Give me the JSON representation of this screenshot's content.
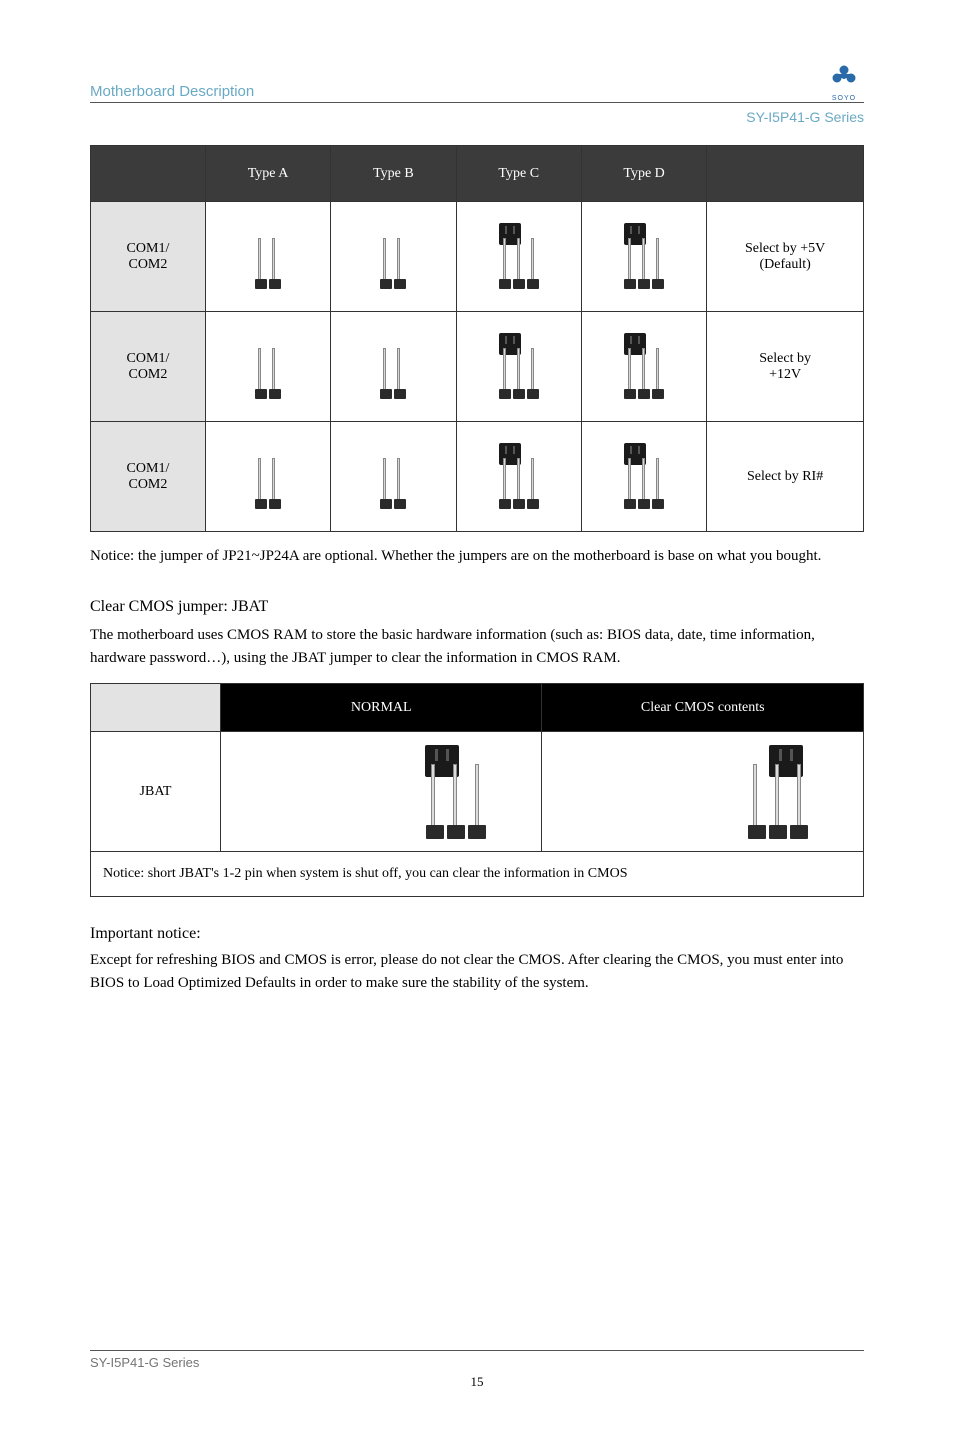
{
  "colors": {
    "header_text": "#6aa9c4",
    "table1_header_bg": "#3b3b3b",
    "table1_rowlabel_bg": "#e3e3e3",
    "table2_header_bg": "#000000",
    "footer_text": "#747474",
    "logo": "#2a6aa8"
  },
  "header": {
    "left": "Motherboard Description",
    "series": "SY-I5P41-G Series"
  },
  "logo": {
    "label": "SOYO"
  },
  "table1": {
    "headers": [
      "",
      "Type A",
      "Type B",
      "Type C",
      "Type D",
      ""
    ],
    "rows": [
      {
        "label": "COM1/\nCOM2",
        "desc": "Select by +5V\n(Default)",
        "cells": [
          {
            "pins": 2,
            "cap": null
          },
          {
            "pins": 2,
            "cap": null
          },
          {
            "pins": 3,
            "cap": "left"
          },
          {
            "pins": 3,
            "cap": "left"
          }
        ]
      },
      {
        "label": "COM1/\nCOM2",
        "desc": "Select by\n+12V",
        "cells": [
          {
            "pins": 2,
            "cap": null
          },
          {
            "pins": 2,
            "cap": null
          },
          {
            "pins": 3,
            "cap": "left"
          },
          {
            "pins": 3,
            "cap": "left"
          }
        ]
      },
      {
        "label": "COM1/\nCOM2",
        "desc": "Select by RI#",
        "cells": [
          {
            "pins": 2,
            "cap": null
          },
          {
            "pins": 2,
            "cap": null
          },
          {
            "pins": 3,
            "cap": "left"
          },
          {
            "pins": 3,
            "cap": "left"
          }
        ]
      }
    ]
  },
  "mid_note": "Notice: the jumper of JP21~JP24A are optional. Whether the jumpers are on the motherboard is base on what you bought.",
  "section": {
    "heading": "Clear CMOS jumper: JBAT",
    "body": "The motherboard uses CMOS RAM to store the basic hardware information (such as: BIOS data, date, time information, hardware password…), using the JBAT jumper to clear the information in CMOS RAM."
  },
  "table2": {
    "headers": [
      "",
      "NORMAL",
      "Clear CMOS contents"
    ],
    "row_label": "JBAT",
    "cells": [
      {
        "cap": "left"
      },
      {
        "cap": "right"
      }
    ],
    "footnote": "Notice: short JBAT's 1-2 pin when system is shut off, you can clear the information in CMOS"
  },
  "important": {
    "title": "Important notice:",
    "body": "Except for refreshing BIOS and CMOS is error, please do not clear the CMOS. After clearing the CMOS, you must enter into BIOS to Load Optimized Defaults in order to make sure the stability of the system."
  },
  "footer": {
    "text": "SY-I5P41-G Series",
    "page": "15"
  }
}
